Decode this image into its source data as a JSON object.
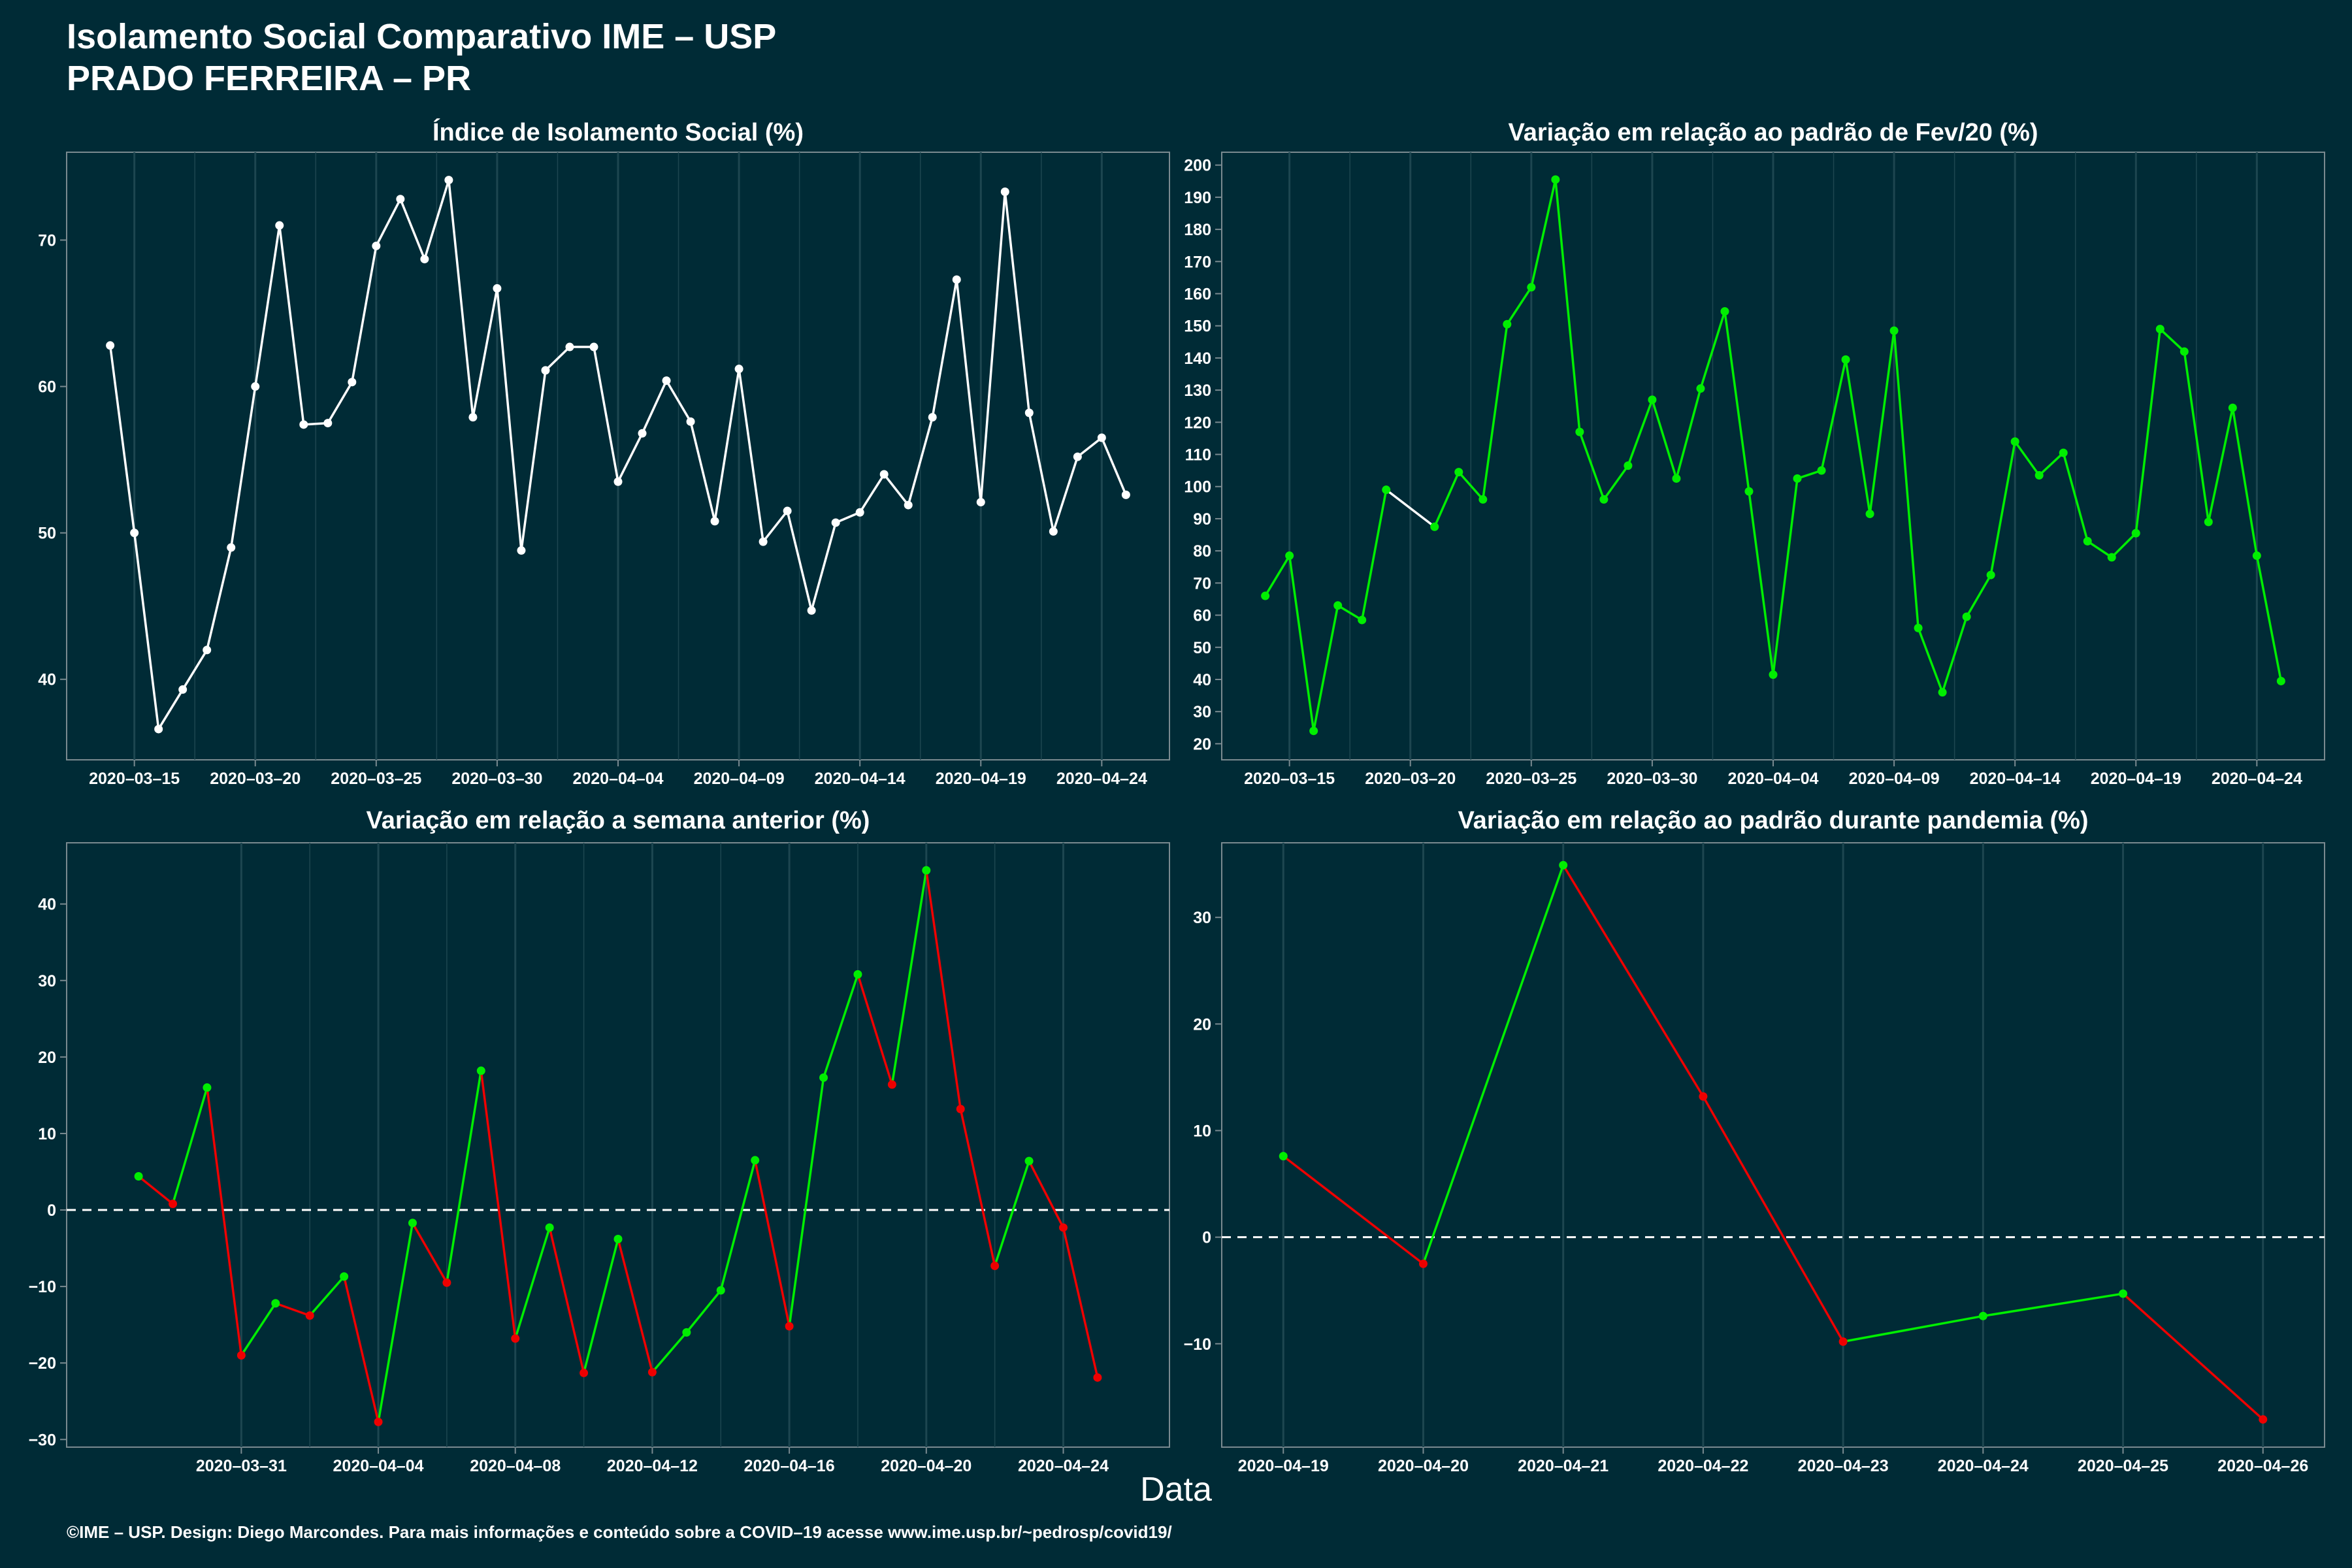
{
  "header": {
    "title_line1": "Isolamento Social Comparativo IME – USP",
    "title_line2": "PRADO FERREIRA – PR"
  },
  "x_axis_label": "Data",
  "footer": "©IME – USP. Design: Diego Marcondes. Para mais informações e conteúdo sobre a COVID–19 acesse www.ime.usp.br/~pedrosp/covid19/",
  "colors": {
    "background": "#002b36",
    "white_series": "#ffffff",
    "positive": "#00ee00",
    "negative": "#ee0000",
    "grid": "#1d4650",
    "axis": "#7a8a90"
  },
  "chart_data": [
    {
      "type": "line",
      "title": "Índice de Isolamento Social (%)",
      "x_start": "2020-03-14",
      "x_tick_labels": [
        "2020–03–15",
        "2020–03–20",
        "2020–03–25",
        "2020–03–30",
        "2020–04–04",
        "2020–04–09",
        "2020–04–14",
        "2020–04–19",
        "2020–04–24"
      ],
      "y_ticks": [
        40,
        50,
        60,
        70
      ],
      "ylim": [
        34.5,
        76
      ],
      "grid": "vertical",
      "series": [
        {
          "color_key": "white",
          "values": [
            62.8,
            50.0,
            36.6,
            39.3,
            42.0,
            49.0,
            60.0,
            71.0,
            57.4,
            57.5,
            60.3,
            69.6,
            72.8,
            68.7,
            74.1,
            57.9,
            66.7,
            48.8,
            61.1,
            62.7,
            62.7,
            53.5,
            56.8,
            60.4,
            57.6,
            50.8,
            61.2,
            49.4,
            51.5,
            44.7,
            50.7,
            51.4,
            54.0,
            51.9,
            57.9,
            67.3,
            52.1,
            73.3,
            58.2,
            50.1,
            55.2,
            56.5,
            52.6
          ]
        }
      ]
    },
    {
      "type": "line",
      "title": "Variação em relação ao padrão de Fev/20 (%)",
      "x_start": "2020-03-14",
      "x_tick_labels": [
        "2020–03–15",
        "2020–03–20",
        "2020–03–25",
        "2020–03–30",
        "2020–04–04",
        "2020–04–09",
        "2020–04–14",
        "2020–04–19",
        "2020–04–24"
      ],
      "y_ticks": [
        20,
        30,
        40,
        50,
        60,
        70,
        80,
        90,
        100,
        110,
        120,
        130,
        140,
        150,
        160,
        170,
        180,
        190,
        200
      ],
      "ylim": [
        15,
        204
      ],
      "grid": "vertical",
      "series": [
        {
          "color_key": "positive",
          "values": [
            66.0,
            78.5,
            24.0,
            63.0,
            58.5,
            99.0,
            null,
            87.5,
            104.5,
            96.0,
            150.5,
            162.0,
            195.5,
            117.0,
            96.0,
            106.5,
            127.0,
            102.5,
            130.5,
            154.5,
            98.5,
            41.5,
            102.5,
            105.0,
            139.5,
            91.5,
            148.5,
            56.0,
            36.0,
            59.5,
            72.5,
            114.0,
            103.5,
            110.5,
            83.0,
            78.0,
            85.5,
            149.0,
            142.0,
            89.0,
            124.5,
            78.5,
            39.5
          ]
        }
      ]
    },
    {
      "type": "line",
      "title": "Variação em relação a semana anterior (%)",
      "x_start": "2020-03-28",
      "x_tick_labels": [
        "2020–03–31",
        "2020–04–04",
        "2020–04–08",
        "2020–04–12",
        "2020–04–16",
        "2020–04–20",
        "2020–04–24"
      ],
      "y_ticks": [
        -30,
        -20,
        -10,
        0,
        10,
        20,
        30,
        40
      ],
      "ylim": [
        -31,
        48
      ],
      "grid": "vertical",
      "reference_line": 0,
      "series": [
        {
          "color_key": "mixed",
          "values": [
            4.4,
            0.8,
            16.0,
            -19.0,
            -12.2,
            -13.8,
            -8.7,
            -27.7,
            -1.7,
            -9.5,
            18.2,
            -16.8,
            -2.3,
            -21.3,
            -3.8,
            -21.2,
            -16.0,
            -10.5,
            6.5,
            -15.2,
            17.3,
            30.8,
            16.4,
            44.4,
            13.2,
            -7.3,
            6.4,
            -2.3,
            -21.9
          ]
        }
      ]
    },
    {
      "type": "line",
      "title": "Variação em relação ao padrão durante pandemia (%)",
      "x_start": "2020-04-19",
      "x_tick_labels": [
        "2020–04–19",
        "2020–04–20",
        "2020–04–21",
        "2020–04–22",
        "2020–04–23",
        "2020–04–24",
        "2020–04–25",
        "2020–04–26"
      ],
      "y_ticks": [
        -10,
        0,
        10,
        20,
        30
      ],
      "ylim": [
        -19.7,
        37
      ],
      "grid": "vertical",
      "reference_line": 0,
      "series": [
        {
          "color_key": "mixed",
          "values": [
            7.6,
            -2.5,
            34.9,
            13.2,
            -9.8,
            -7.4,
            -5.3,
            -17.1
          ]
        }
      ]
    }
  ]
}
